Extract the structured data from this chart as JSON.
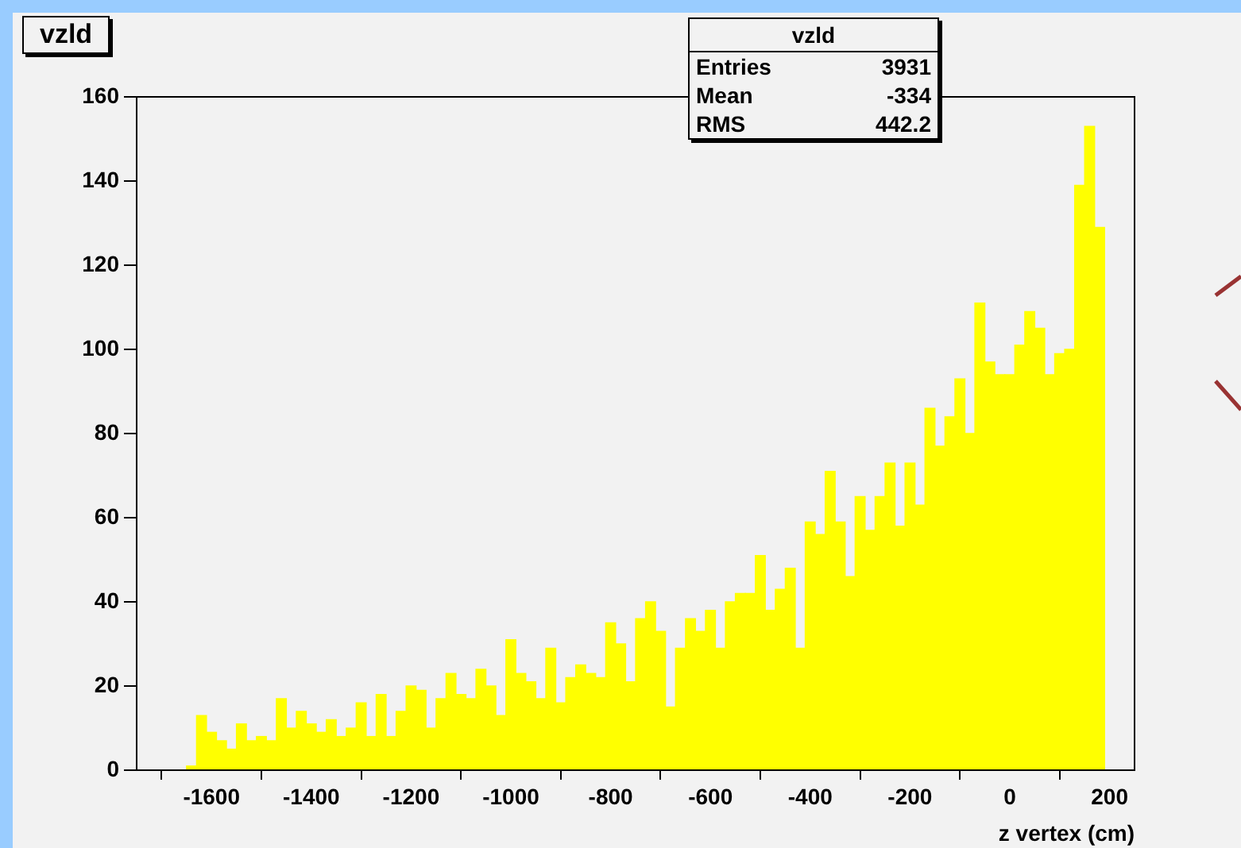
{
  "chart_data": {
    "type": "histogram",
    "title": "vzld",
    "xlabel": "z vertex (cm)",
    "annotations": [
      "vzld",
      "Entries",
      "3931",
      "Mean",
      "-334",
      "RMS",
      "442.2"
    ],
    "bins": [
      -1650,
      -1630,
      -1610,
      -1590,
      -1570,
      -1550,
      -1530,
      -1510,
      -1490,
      -1470,
      -1450,
      -1430,
      -1410,
      -1390,
      -1370,
      -1350,
      -1330,
      -1310,
      -1290,
      -1270,
      -1250,
      -1230,
      -1210,
      -1190,
      -1170,
      -1150,
      -1130,
      -1110,
      -1090,
      -1070,
      -1050,
      -1030,
      -1010,
      -990,
      -970,
      -950,
      -930,
      -910,
      -890,
      -870,
      -850,
      -830,
      -810,
      -790,
      -770,
      -750,
      -730,
      -710,
      -690,
      -670,
      -650,
      -630,
      -610,
      -590,
      -570,
      -550,
      -530,
      -510,
      -490,
      -470,
      -450,
      -430,
      -410,
      -390,
      -370,
      -350,
      -330,
      -310,
      -290,
      -270,
      -250,
      -230,
      -210,
      -190,
      -170,
      -150,
      -130,
      -110,
      -90,
      -70,
      -50,
      -30,
      -10,
      10,
      30,
      50,
      70,
      90,
      110,
      130,
      150,
      170,
      190
    ],
    "values": [
      1,
      13,
      9,
      7,
      5,
      11,
      7,
      8,
      7,
      17,
      10,
      14,
      11,
      9,
      12,
      8,
      10,
      16,
      8,
      18,
      8,
      14,
      20,
      19,
      10,
      17,
      23,
      18,
      17,
      24,
      20,
      13,
      31,
      23,
      21,
      17,
      29,
      16,
      22,
      25,
      23,
      22,
      35,
      30,
      21,
      36,
      40,
      33,
      15,
      29,
      36,
      33,
      38,
      29,
      40,
      42,
      42,
      51,
      38,
      43,
      48,
      29,
      59,
      56,
      71,
      59,
      46,
      65,
      57,
      65,
      73,
      58,
      73,
      63,
      86,
      77,
      84,
      93,
      80,
      111,
      97,
      94,
      94,
      101,
      109,
      105,
      94,
      99,
      100,
      139,
      153,
      129
    ],
    "color": "#ffff00",
    "xlim": [
      -1750,
      250
    ],
    "xticks": [
      -1600,
      -1400,
      -1200,
      -1000,
      -800,
      -600,
      -400,
      -200,
      0,
      200
    ],
    "ylim": [
      0,
      160
    ],
    "yticks": [
      0,
      20,
      40,
      60,
      80,
      100,
      120,
      140,
      160
    ],
    "grid": false,
    "legend": false
  }
}
